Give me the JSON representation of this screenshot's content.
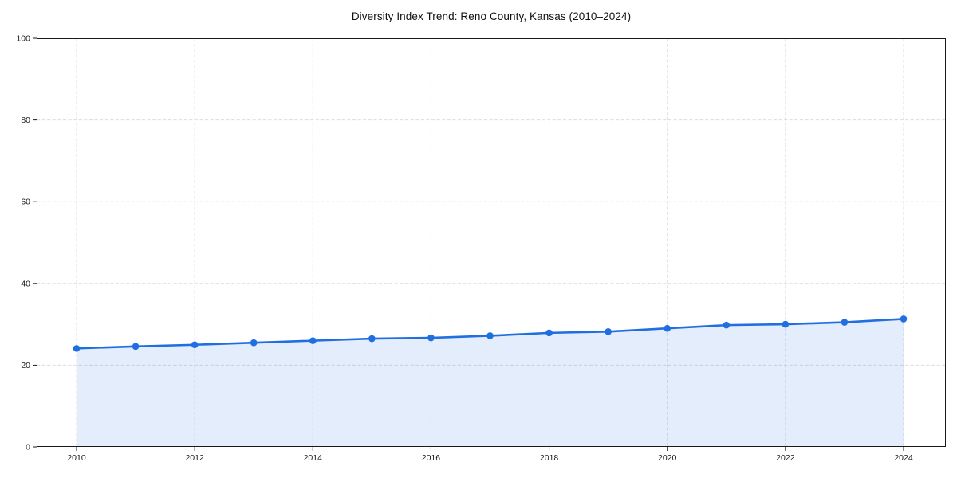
{
  "chart_data": {
    "type": "line",
    "title": "Diversity Index Trend: Reno County, Kansas (2010–2024)",
    "x": [
      2010,
      2011,
      2012,
      2013,
      2014,
      2015,
      2016,
      2017,
      2018,
      2019,
      2020,
      2021,
      2022,
      2023,
      2024
    ],
    "series": [
      {
        "name": "Diversity Index",
        "values": [
          24.1,
          24.6,
          25.0,
          25.5,
          26.0,
          26.5,
          26.7,
          27.2,
          27.9,
          28.2,
          29.0,
          29.8,
          30.0,
          30.5,
          31.3
        ]
      }
    ],
    "xlabel": "",
    "ylabel": "",
    "ylim": [
      0,
      100
    ],
    "y_ticks": [
      0,
      20,
      40,
      60,
      80,
      100
    ],
    "x_ticks": [
      2010,
      2012,
      2014,
      2016,
      2018,
      2020,
      2022,
      2024
    ],
    "grid": true,
    "grid_style": "dashed",
    "area_fill": true,
    "legend_position": "none",
    "markers": "circle",
    "colors": {
      "line": "#1f6fe0",
      "fill": "#1f6fe0",
      "fill_opacity": 0.12,
      "grid": "#dcdcdc",
      "axis": "#1a1a1a",
      "text": "#1a1a1a",
      "background": "#ffffff"
    }
  }
}
